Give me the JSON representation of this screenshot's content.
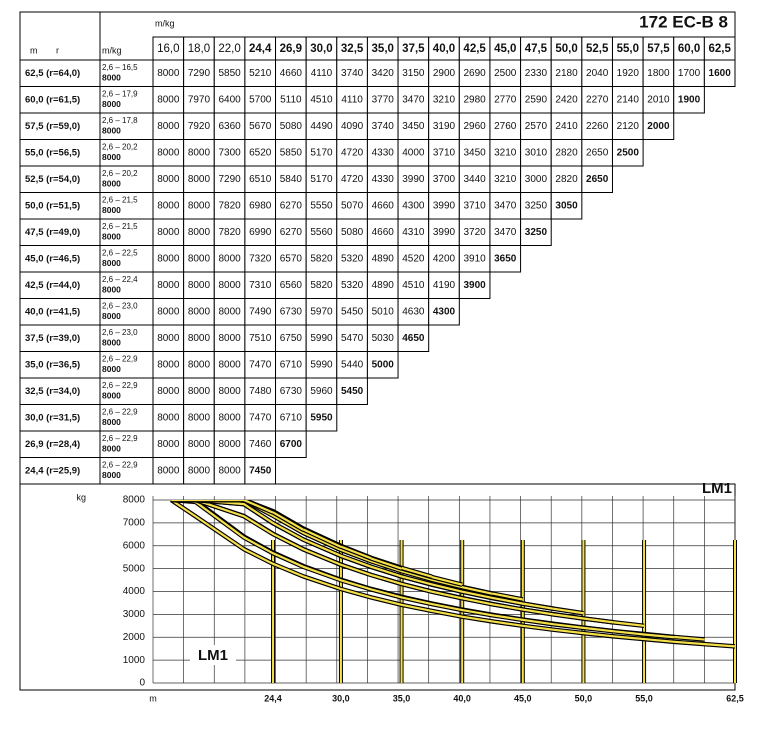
{
  "header": {
    "unit": "m/kg",
    "title": "172 EC-B 8",
    "col_m": "m",
    "col_r": "r",
    "col_unit": "m/kg"
  },
  "table": {
    "columns": [
      "16,0",
      "18,0",
      "22,0",
      "24,4",
      "26,9",
      "30,0",
      "32,5",
      "35,0",
      "37,5",
      "40,0",
      "42,5",
      "45,0",
      "47,5",
      "50,0",
      "52,5",
      "55,0",
      "57,5",
      "60,0",
      "62,5"
    ],
    "rows": [
      {
        "label": "62,5 (r=64,0)",
        "range": "2,6 – 16,5",
        "max": 8000,
        "values": [
          8000,
          7290,
          5850,
          5210,
          4660,
          4110,
          3740,
          3420,
          3150,
          2900,
          2690,
          2500,
          2330,
          2180,
          2040,
          1920,
          1800,
          1700,
          1600
        ]
      },
      {
        "label": "60,0 (r=61,5)",
        "range": "2,6 – 17,9",
        "max": 8000,
        "values": [
          8000,
          7970,
          6400,
          5700,
          5110,
          4510,
          4110,
          3770,
          3470,
          3210,
          2980,
          2770,
          2590,
          2420,
          2270,
          2140,
          2010,
          1900
        ]
      },
      {
        "label": "57,5 (r=59,0)",
        "range": "2,6 – 17,8",
        "max": 8000,
        "values": [
          8000,
          7920,
          6360,
          5670,
          5080,
          4490,
          4090,
          3740,
          3450,
          3190,
          2960,
          2760,
          2570,
          2410,
          2260,
          2120,
          2000
        ]
      },
      {
        "label": "55,0 (r=56,5)",
        "range": "2,6 – 20,2",
        "max": 8000,
        "values": [
          8000,
          8000,
          7300,
          6520,
          5850,
          5170,
          4720,
          4330,
          4000,
          3710,
          3450,
          3210,
          3010,
          2820,
          2650,
          2500
        ]
      },
      {
        "label": "52,5 (r=54,0)",
        "range": "2,6 – 20,2",
        "max": 8000,
        "values": [
          8000,
          8000,
          7290,
          6510,
          5840,
          5170,
          4720,
          4330,
          3990,
          3700,
          3440,
          3210,
          3000,
          2820,
          2650
        ]
      },
      {
        "label": "50,0 (r=51,5)",
        "range": "2,6 – 21,5",
        "max": 8000,
        "values": [
          8000,
          8000,
          7820,
          6980,
          6270,
          5550,
          5070,
          4660,
          4300,
          3990,
          3710,
          3470,
          3250,
          3050
        ]
      },
      {
        "label": "47,5 (r=49,0)",
        "range": "2,6 – 21,5",
        "max": 8000,
        "values": [
          8000,
          8000,
          7820,
          6990,
          6270,
          5560,
          5080,
          4660,
          4310,
          3990,
          3720,
          3470,
          3250
        ]
      },
      {
        "label": "45,0 (r=46,5)",
        "range": "2,6 – 22,5",
        "max": 8000,
        "values": [
          8000,
          8000,
          8000,
          7320,
          6570,
          5820,
          5320,
          4890,
          4520,
          4200,
          3910,
          3650
        ]
      },
      {
        "label": "42,5 (r=44,0)",
        "range": "2,6 – 22,4",
        "max": 8000,
        "values": [
          8000,
          8000,
          8000,
          7310,
          6560,
          5820,
          5320,
          4890,
          4510,
          4190,
          3900
        ]
      },
      {
        "label": "40,0 (r=41,5)",
        "range": "2,6 – 23,0",
        "max": 8000,
        "values": [
          8000,
          8000,
          8000,
          7490,
          6730,
          5970,
          5450,
          5010,
          4630,
          4300
        ]
      },
      {
        "label": "37,5 (r=39,0)",
        "range": "2,6 – 23,0",
        "max": 8000,
        "values": [
          8000,
          8000,
          8000,
          7510,
          6750,
          5990,
          5470,
          5030,
          4650
        ]
      },
      {
        "label": "35,0 (r=36,5)",
        "range": "2,6 – 22,9",
        "max": 8000,
        "values": [
          8000,
          8000,
          8000,
          7470,
          6710,
          5990,
          5440,
          5000
        ]
      },
      {
        "label": "32,5 (r=34,0)",
        "range": "2,6 – 22,9",
        "max": 8000,
        "values": [
          8000,
          8000,
          8000,
          7480,
          6730,
          5960,
          5450
        ]
      },
      {
        "label": "30,0 (r=31,5)",
        "range": "2,6 – 22,9",
        "max": 8000,
        "values": [
          8000,
          8000,
          8000,
          7470,
          6710,
          5950
        ]
      },
      {
        "label": "26,9 (r=28,4)",
        "range": "2,6 – 22,9",
        "max": 8000,
        "values": [
          8000,
          8000,
          8000,
          7460,
          6700
        ]
      },
      {
        "label": "24,4 (r=25,9)",
        "range": "2,6 – 22,9",
        "max": 8000,
        "values": [
          8000,
          8000,
          8000,
          7450
        ]
      }
    ]
  },
  "chart": {
    "label": "LM1",
    "inner_label": "LM1",
    "y_label": "kg",
    "x_label": "m",
    "ylim": [
      0,
      8000
    ],
    "yticks": [
      0,
      1000,
      2000,
      3000,
      4000,
      5000,
      6000,
      7000,
      8000
    ],
    "xlim": [
      14.5,
      62.5
    ],
    "xticks": [
      {
        "value": 24.4,
        "label": "24,4"
      },
      {
        "value": 30,
        "label": "30,0"
      },
      {
        "value": 35,
        "label": "35,0"
      },
      {
        "value": 40,
        "label": "40,0"
      },
      {
        "value": 45,
        "label": "45,0"
      },
      {
        "value": 50,
        "label": "50,0"
      },
      {
        "value": 55,
        "label": "55,0"
      },
      {
        "value": 62.5,
        "label": "62,5"
      }
    ],
    "curve_color": "#f5e04a"
  }
}
